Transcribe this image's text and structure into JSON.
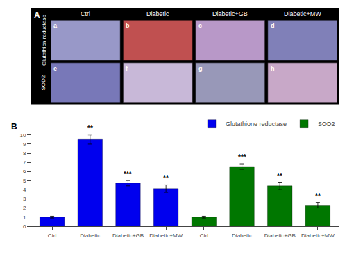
{
  "chart_data": [
    {
      "type": "tiles",
      "title": "A",
      "categories": [
        "Ctrl",
        "Diabetic",
        "Diabetic+GB",
        "Diabetic+MW"
      ],
      "series": [
        {
          "name": "Glutathion reductase",
          "colors": [
            "#9898C8",
            "#C05050",
            "#B898C8",
            "#8080B8"
          ],
          "annotations": [
            "a",
            "b",
            "c",
            "d"
          ]
        },
        {
          "name": "SOD2",
          "colors": [
            "#7878B8",
            "#C8B8D8",
            "#9898B8",
            "#C8A8C8"
          ],
          "annotations": [
            "e",
            "f",
            "g",
            "h"
          ]
        }
      ]
    },
    {
      "type": "bar",
      "title": "B",
      "categories": [
        "Ctrl",
        "Diabetic",
        "Diabetic+GB",
        "Diabetic+MW",
        "Ctrl",
        "Diabetic",
        "Diabetic+GB",
        "Diabetic+MW"
      ],
      "series": [
        {
          "name": "Glutathione reductase",
          "color": "#0000EE",
          "values": [
            1.0,
            9.5,
            4.7,
            4.1,
            null,
            null,
            null,
            null
          ],
          "errors": [
            0.1,
            0.5,
            0.3,
            0.4,
            null,
            null,
            null,
            null
          ],
          "annotations": [
            null,
            "**",
            "***",
            "**",
            null,
            null,
            null,
            null
          ]
        },
        {
          "name": "SOD2",
          "color": "#007700",
          "values": [
            null,
            null,
            null,
            null,
            1.0,
            6.5,
            4.4,
            2.3
          ],
          "errors": [
            null,
            null,
            null,
            null,
            0.1,
            0.3,
            0.4,
            0.3
          ],
          "annotations": [
            null,
            null,
            null,
            null,
            null,
            "***",
            "**",
            "**"
          ]
        }
      ],
      "ylim": [
        0,
        10
      ],
      "yticks": [
        0,
        1,
        2,
        3,
        4,
        5,
        6,
        7,
        8,
        9,
        10
      ],
      "grid": false,
      "legend": "upper right"
    }
  ]
}
